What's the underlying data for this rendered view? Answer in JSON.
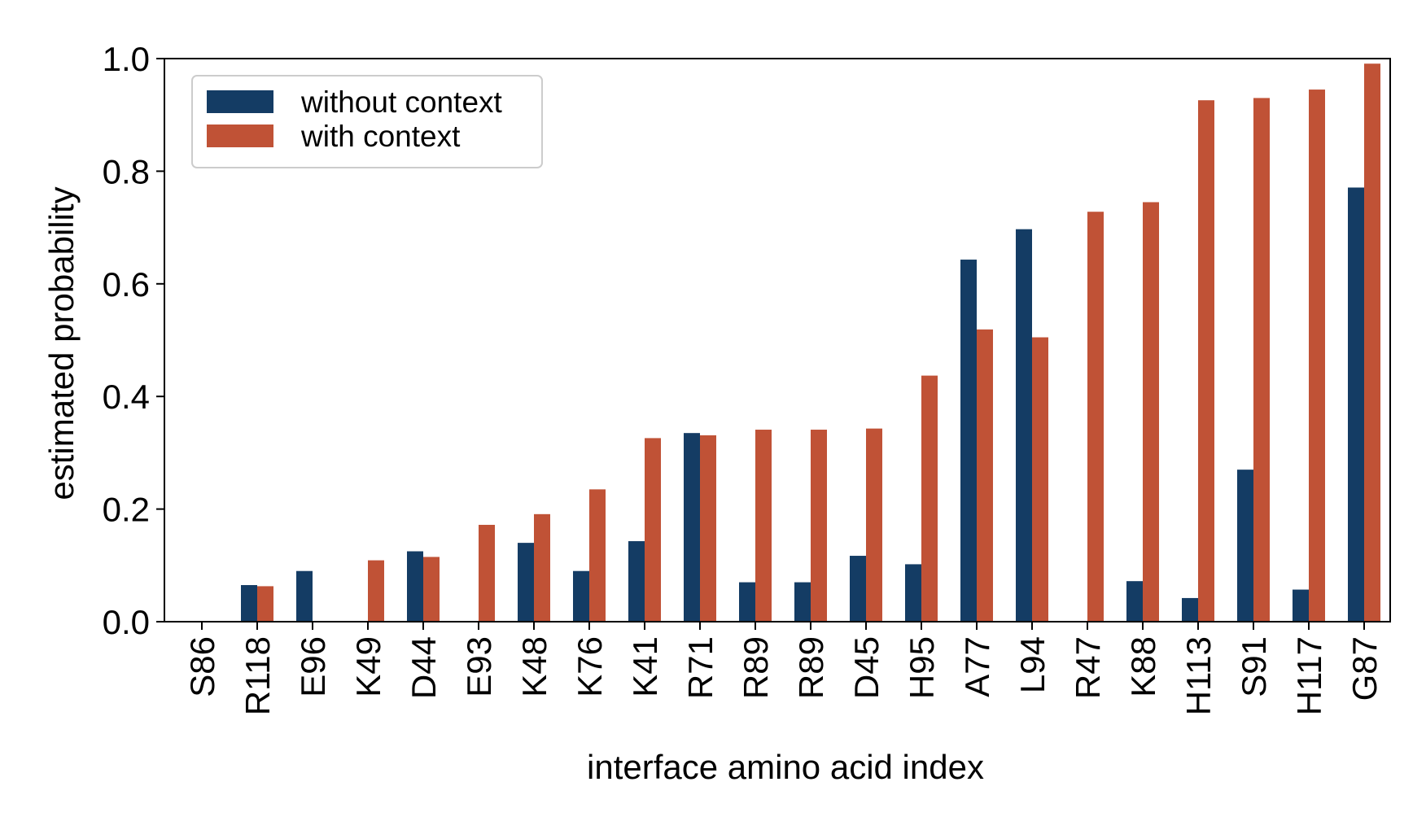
{
  "chart_data": {
    "type": "bar",
    "title": "",
    "xlabel": "interface amino acid index",
    "ylabel": "estimated probability",
    "ylim": [
      0,
      1.0
    ],
    "yticks": [
      "0.0",
      "0.2",
      "0.4",
      "0.6",
      "0.8",
      "1.0"
    ],
    "categories": [
      "S86",
      "R118",
      "E96",
      "K49",
      "D44",
      "E93",
      "K48",
      "K76",
      "K41",
      "R71",
      "R89",
      "R89",
      "D45",
      "H95",
      "A77",
      "L94",
      "R47",
      "K88",
      "H113",
      "S91",
      "H117",
      "G87"
    ],
    "series": [
      {
        "name": "without context",
        "color": "#143c64",
        "values": [
          0.0,
          0.065,
          0.09,
          0.0,
          0.125,
          0.0,
          0.14,
          0.09,
          0.143,
          0.335,
          0.07,
          0.07,
          0.117,
          0.102,
          0.643,
          0.697,
          0.0,
          0.072,
          0.042,
          0.27,
          0.057,
          0.771
        ]
      },
      {
        "name": "with context",
        "color": "#c05236",
        "values": [
          0.0,
          0.063,
          0.0,
          0.109,
          0.115,
          0.172,
          0.191,
          0.235,
          0.326,
          0.331,
          0.341,
          0.341,
          0.343,
          0.437,
          0.519,
          0.505,
          0.728,
          0.745,
          0.926,
          0.93,
          0.945,
          0.991
        ]
      }
    ],
    "legend": {
      "placement": "top-left"
    },
    "grid": false
  }
}
